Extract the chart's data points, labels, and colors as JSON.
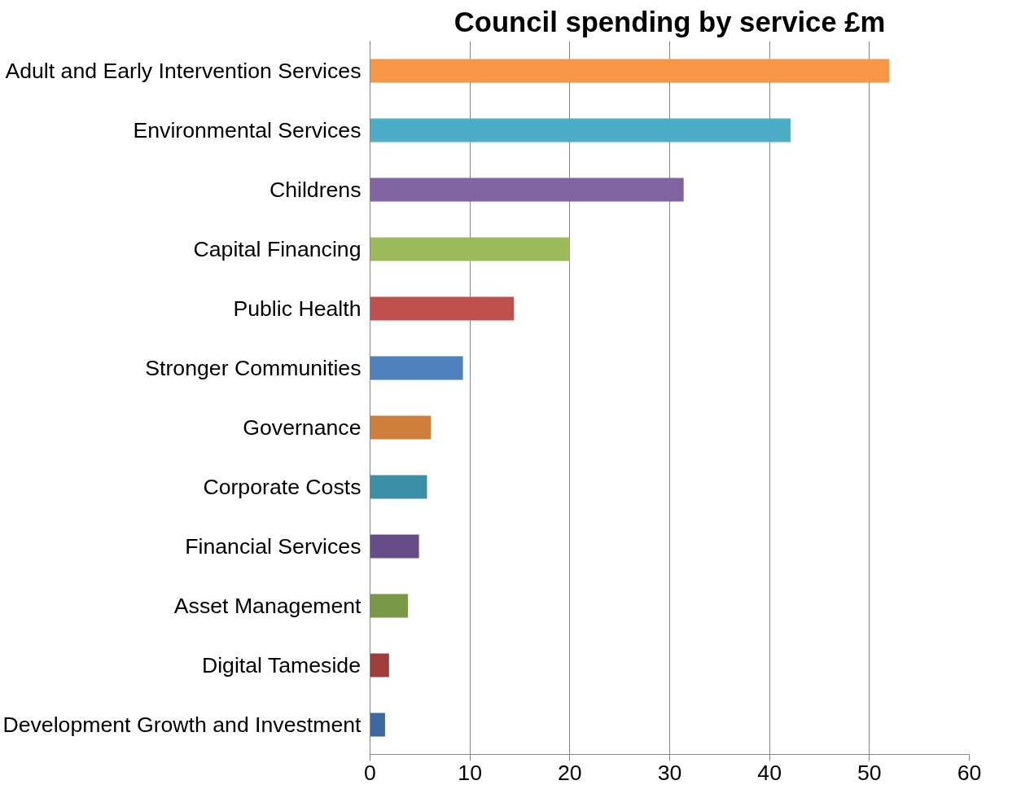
{
  "chart_data": {
    "type": "bar",
    "orientation": "horizontal",
    "title": "Council spending by service £m",
    "categories": [
      "Adult and Early Intervention Services",
      "Environmental Services",
      "Childrens",
      "Capital Financing",
      "Public Health",
      "Stronger Communities",
      "Governance",
      "Corporate Costs",
      "Financial Services",
      "Asset Management",
      "Digital Tameside",
      "Development Growth and Investment"
    ],
    "values": [
      52,
      42.1,
      31.4,
      20,
      14.4,
      9.3,
      6.1,
      5.7,
      4.9,
      3.8,
      1.9,
      1.5
    ],
    "colors": [
      "#f79646",
      "#4bacc6",
      "#8064a2",
      "#9bbb59",
      "#c0504d",
      "#4f81bd",
      "#d07f3a",
      "#3a8ea5",
      "#664d8a",
      "#799848",
      "#a03c3a",
      "#3d68a0"
    ],
    "xlim": [
      0,
      60
    ],
    "xticks": [
      0,
      10,
      20,
      30,
      40,
      50,
      60
    ],
    "grid": "x"
  }
}
